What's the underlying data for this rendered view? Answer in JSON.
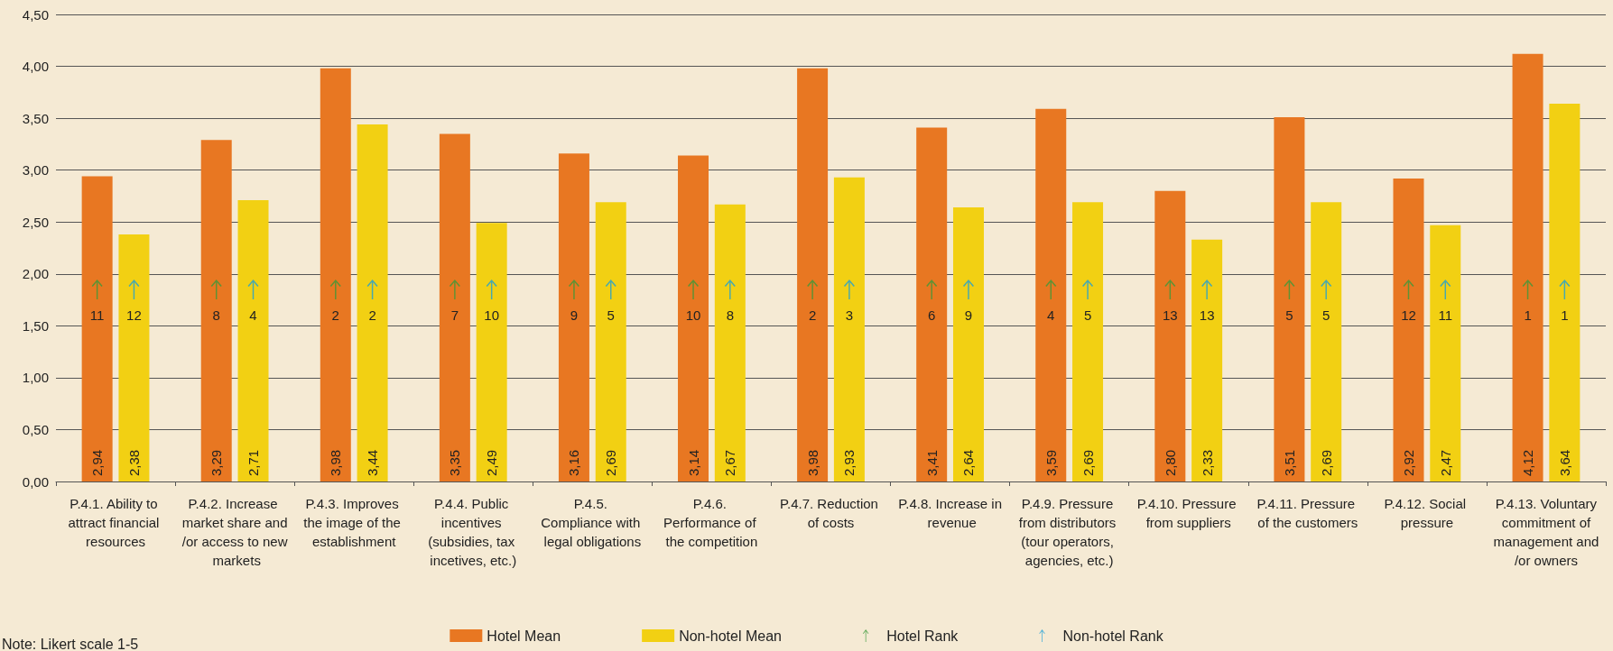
{
  "chart_data": {
    "type": "bar",
    "categories": [
      "P.4.1. Ability to attract financial resources",
      "P.4.2. Increase market share and/or access to new markets",
      "P.4.3. Improves the image of the establishment",
      "P.4.4. Public incentives (subsidies, tax incetives, etc.)",
      "P.4.5. Compliance with legal obligations",
      "P.4.6. Performance of the competition",
      "P.4.7. Reduction of costs",
      "P.4.8. Increase in revenue",
      "P.4.9. Pressure from distributors (tour operators, agencies, etc.)",
      "P.4.10. Pressure from suppliers",
      "P.4.11. Pressure of the customers",
      "P.4.12. Social pressure",
      "P.4.13. Voluntary commitment of management and/or owners"
    ],
    "series": [
      {
        "name": "Hotel Mean",
        "color": "#e87722",
        "values": [
          2.94,
          3.29,
          3.98,
          3.35,
          3.16,
          3.14,
          3.98,
          3.41,
          3.59,
          2.8,
          3.51,
          2.92,
          4.12
        ],
        "value_labels": [
          "2,94",
          "3,29",
          "3,98",
          "3,35",
          "3,16",
          "3,14",
          "3,98",
          "3,41",
          "3,59",
          "2,80",
          "3,51",
          "2,92",
          "4,12"
        ]
      },
      {
        "name": "Non-hotel Mean",
        "color": "#f2d013",
        "values": [
          2.38,
          2.71,
          3.44,
          2.49,
          2.69,
          2.67,
          2.93,
          2.64,
          2.69,
          2.33,
          2.69,
          2.47,
          3.64
        ],
        "value_labels": [
          "2,38",
          "2,71",
          "3,44",
          "2,49",
          "2,69",
          "2,67",
          "2,93",
          "2,64",
          "2,69",
          "2,33",
          "2,69",
          "2,47",
          "3,64"
        ]
      },
      {
        "name": "Hotel Rank",
        "type": "scatter",
        "color": "#3a9a3a",
        "values": [
          1.85,
          1.85,
          1.85,
          1.85,
          1.85,
          1.85,
          1.85,
          1.85,
          1.85,
          1.85,
          1.85,
          1.85,
          1.85
        ]
      },
      {
        "name": "Non-hotel Rank",
        "type": "scatter",
        "color": "#1a9fd8",
        "values": [
          1.85,
          1.85,
          1.85,
          1.85,
          1.85,
          1.85,
          1.85,
          1.85,
          1.85,
          1.85,
          1.85,
          1.85,
          1.85
        ]
      }
    ],
    "ylim": [
      0,
      4.5
    ],
    "yticks": [
      {
        "value": 0,
        "label": "0,00"
      },
      {
        "value": 0.5,
        "label": "0,50"
      },
      {
        "value": 1,
        "label": "1,00"
      },
      {
        "value": 1.5,
        "label": "1,50"
      },
      {
        "value": 2,
        "label": "2,00"
      },
      {
        "value": 2.5,
        "label": "2,50"
      },
      {
        "value": 3,
        "label": "3,00"
      },
      {
        "value": 3.5,
        "label": "3,50"
      },
      {
        "value": 4,
        "label": "4,00"
      },
      {
        "value": 4.5,
        "label": "4,50"
      }
    ],
    "grid": "y",
    "legend": "bottom",
    "annotations": [
      "Note: Likert scale 1-5",
      {
        "text": "11",
        "x": "P.4.1. Ability to attract financial resources",
        "y": 1.6
      },
      {
        "text": "12",
        "x": "P.4.1. Ability to attract financial resources",
        "y": 1.6
      },
      {
        "text": "8",
        "x": "P.4.2. Increase market share and/or access to new markets",
        "y": 1.6
      },
      {
        "text": "4",
        "x": "P.4.2. Increase market share and/or access to new markets",
        "y": 1.6
      },
      {
        "text": "2",
        "x": "P.4.3. Improves the image of the establishment",
        "y": 1.6
      },
      {
        "text": "2",
        "x": "P.4.3. Improves the image of the establishment",
        "y": 1.6
      },
      {
        "text": "7",
        "x": "P.4.4. Public incentives (subsidies, tax incetives, etc.)",
        "y": 1.6
      },
      {
        "text": "10",
        "x": "P.4.4. Public incentives (subsidies, tax incetives, etc.)",
        "y": 1.6
      },
      {
        "text": "9",
        "x": "P.4.5. Compliance with legal obligations",
        "y": 1.6
      },
      {
        "text": "5",
        "x": "P.4.5. Compliance with legal obligations",
        "y": 1.6
      },
      {
        "text": "10",
        "x": "P.4.6. Performance of the competition",
        "y": 1.6
      },
      {
        "text": "8",
        "x": "P.4.6. Performance of the competition",
        "y": 1.6
      },
      {
        "text": "2",
        "x": "P.4.7. Reduction of costs",
        "y": 1.6
      },
      {
        "text": "3",
        "x": "P.4.7. Reduction of costs",
        "y": 1.6
      },
      {
        "text": "6",
        "x": "P.4.8. Increase in revenue",
        "y": 1.6
      },
      {
        "text": "9",
        "x": "P.4.8. Increase in revenue",
        "y": 1.6
      },
      {
        "text": "4",
        "x": "P.4.9. Pressure from distributors (tour operators, agencies, etc.)",
        "y": 1.6
      },
      {
        "text": "5",
        "x": "P.4.9. Pressure from distributors (tour operators, agencies, etc.)",
        "y": 1.6
      },
      {
        "text": "13",
        "x": "P.4.10. Pressure from suppliers",
        "y": 1.6
      },
      {
        "text": "13",
        "x": "P.4.10. Pressure from suppliers",
        "y": 1.6
      },
      {
        "text": "5",
        "x": "P.4.11. Pressure of the customers",
        "y": 1.6
      },
      {
        "text": "5",
        "x": "P.4.11. Pressure of the customers",
        "y": 1.6
      },
      {
        "text": "12",
        "x": "P.4.12. Social pressure",
        "y": 1.6
      },
      {
        "text": "11",
        "x": "P.4.12. Social pressure",
        "y": 1.6
      },
      {
        "text": "1",
        "x": "P.4.13. Voluntary commitment of management and/or owners",
        "y": 1.6
      },
      {
        "text": "1",
        "x": "P.4.13. Voluntary commitment of management and/or owners",
        "y": 1.6
      }
    ]
  }
}
